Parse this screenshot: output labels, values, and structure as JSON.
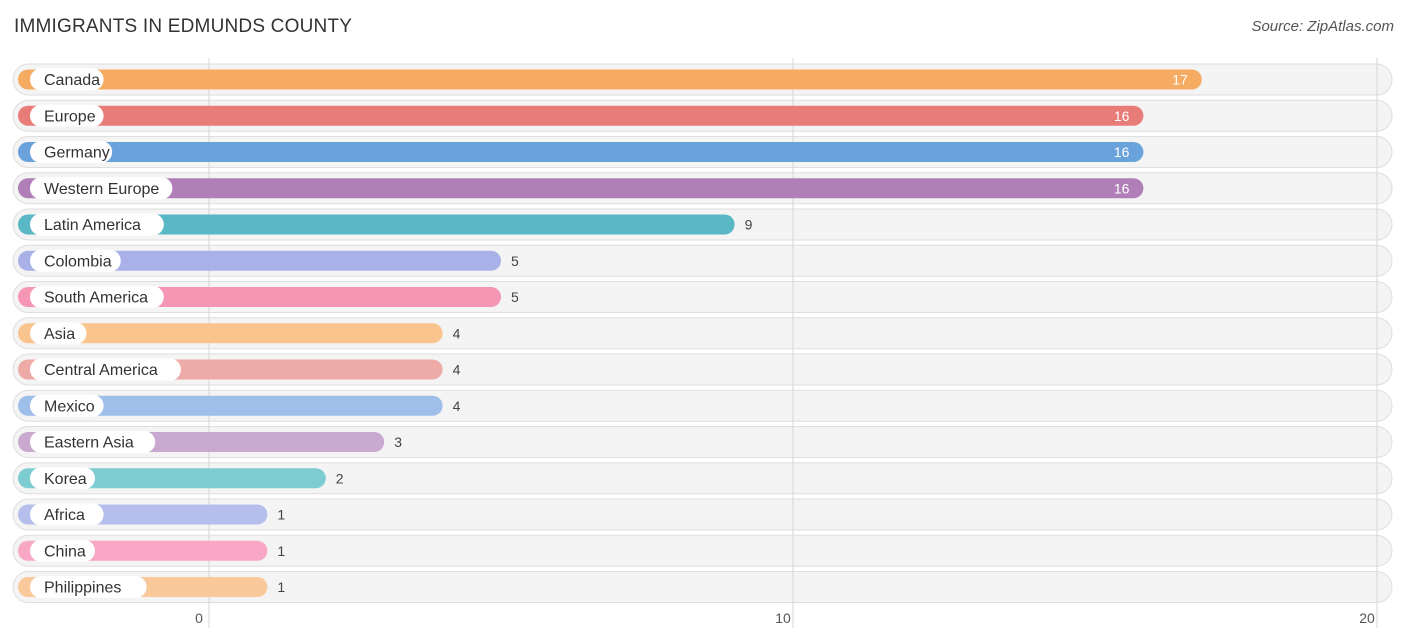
{
  "header": {
    "title": "IMMIGRANTS IN EDMUNDS COUNTY",
    "source": "Source: ZipAtlas.com"
  },
  "chart_data": {
    "type": "bar",
    "orientation": "horizontal",
    "title": "IMMIGRANTS IN EDMUNDS COUNTY",
    "categories": [
      "Canada",
      "Europe",
      "Germany",
      "Western Europe",
      "Latin America",
      "Colombia",
      "South America",
      "Asia",
      "Central America",
      "Mexico",
      "Eastern Asia",
      "Korea",
      "Africa",
      "China",
      "Philippines"
    ],
    "values": [
      17,
      16,
      16,
      16,
      9,
      5,
      5,
      4,
      4,
      4,
      3,
      2,
      1,
      1,
      1
    ],
    "colors": [
      "#f6ab62",
      "#e87c78",
      "#6aa3dc",
      "#b07fb8",
      "#59b7c6",
      "#a9b1e8",
      "#f597b4",
      "#fac48f",
      "#eeaaa6",
      "#9fbfea",
      "#c9a9cf",
      "#7cccd1",
      "#b6bfeb",
      "#f8a8c4",
      "#f9c99b"
    ],
    "xlim": [
      0,
      20
    ],
    "xticks": [
      0,
      10,
      20
    ],
    "grid": true
  }
}
